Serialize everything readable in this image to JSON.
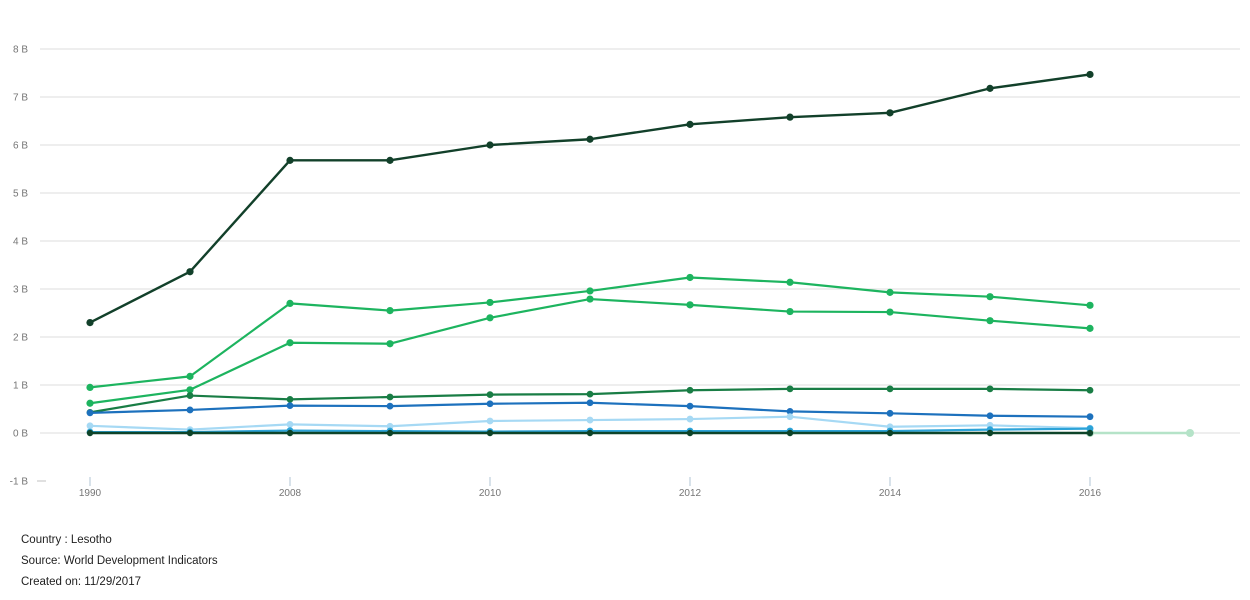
{
  "chart_data": {
    "type": "line",
    "title": "",
    "xlabel": "",
    "ylabel": "",
    "unit": "B",
    "ylim": [
      -1,
      8
    ],
    "grid": true,
    "legend_position": "none",
    "y_tick_labels": [
      "8 B",
      "7 B",
      "6 B",
      "5 B",
      "4 B",
      "3 B",
      "2 B",
      "1 B",
      "0 B",
      "-1 B"
    ],
    "y_tick_values": [
      8,
      7,
      6,
      5,
      4,
      3,
      2,
      1,
      0,
      -1
    ],
    "categories": [
      "1990",
      "2000",
      "2008",
      "2009",
      "2010",
      "2011",
      "2012",
      "2013",
      "2014",
      "2015",
      "2016",
      "2017"
    ],
    "x_tick_labels": [
      "1990",
      "",
      "2008",
      "",
      "2010",
      "",
      "2012",
      "",
      "2014",
      "",
      "2016",
      ""
    ],
    "series": [
      {
        "name": "mint-flat-end",
        "color": "#b5e3c8",
        "width": 2.5,
        "dot": 4,
        "values": [
          null,
          null,
          null,
          null,
          null,
          null,
          null,
          null,
          null,
          null,
          0.0,
          0.0
        ]
      },
      {
        "name": "dark-green-top",
        "color": "#12402a",
        "width": 2.4,
        "dot": 3.6,
        "values": [
          2.3,
          3.36,
          5.68,
          5.68,
          6.0,
          6.12,
          6.43,
          6.58,
          6.67,
          7.18,
          7.47,
          null
        ]
      },
      {
        "name": "bright-green-upper",
        "color": "#1db45f",
        "width": 2.2,
        "dot": 3.6,
        "values": [
          0.95,
          1.18,
          2.7,
          2.55,
          2.72,
          2.96,
          3.24,
          3.14,
          2.93,
          2.84,
          2.66,
          null
        ]
      },
      {
        "name": "bright-green-lower",
        "color": "#1db45f",
        "width": 2.2,
        "dot": 3.6,
        "values": [
          0.62,
          0.9,
          1.88,
          1.86,
          2.4,
          2.79,
          2.67,
          2.53,
          2.52,
          2.34,
          2.18,
          null
        ]
      },
      {
        "name": "forest-green-mid",
        "color": "#197d45",
        "width": 2.2,
        "dot": 3.4,
        "values": [
          0.43,
          0.78,
          0.7,
          0.75,
          0.8,
          0.81,
          0.89,
          0.92,
          0.92,
          0.92,
          0.89,
          null
        ]
      },
      {
        "name": "blue-mid",
        "color": "#1d71bd",
        "width": 2.2,
        "dot": 3.4,
        "values": [
          0.42,
          0.48,
          0.57,
          0.56,
          0.61,
          0.63,
          0.56,
          0.45,
          0.41,
          0.36,
          0.34,
          null
        ]
      },
      {
        "name": "pale-blue-low",
        "color": "#a6d9f4",
        "width": 2.2,
        "dot": 3.4,
        "values": [
          0.15,
          0.07,
          0.18,
          0.14,
          0.25,
          0.27,
          0.29,
          0.34,
          0.13,
          0.16,
          0.1,
          null
        ]
      },
      {
        "name": "cyan-low",
        "color": "#2ca3d8",
        "width": 2.2,
        "dot": 3.4,
        "values": [
          0.02,
          0.02,
          0.05,
          0.04,
          0.03,
          0.04,
          0.04,
          0.04,
          0.04,
          0.07,
          0.09,
          null
        ]
      },
      {
        "name": "dark-green-zero",
        "color": "#0d4429",
        "width": 2.6,
        "dot": 3.2,
        "values": [
          0.0,
          0.0,
          0.0,
          0.0,
          0.0,
          0.0,
          0.0,
          0.0,
          0.0,
          0.0,
          0.0,
          null
        ]
      }
    ],
    "colors": {
      "gridline": "#dcdcdc",
      "axis_label": "#757575",
      "x_tick_mark": "#b0c4d4",
      "y_minus1_dash": "#c0c0c0",
      "background": "#ffffff"
    }
  },
  "footer": {
    "country": "Country : Lesotho",
    "source": "Source: World Development Indicators",
    "created": "Created on: 11/29/2017"
  }
}
